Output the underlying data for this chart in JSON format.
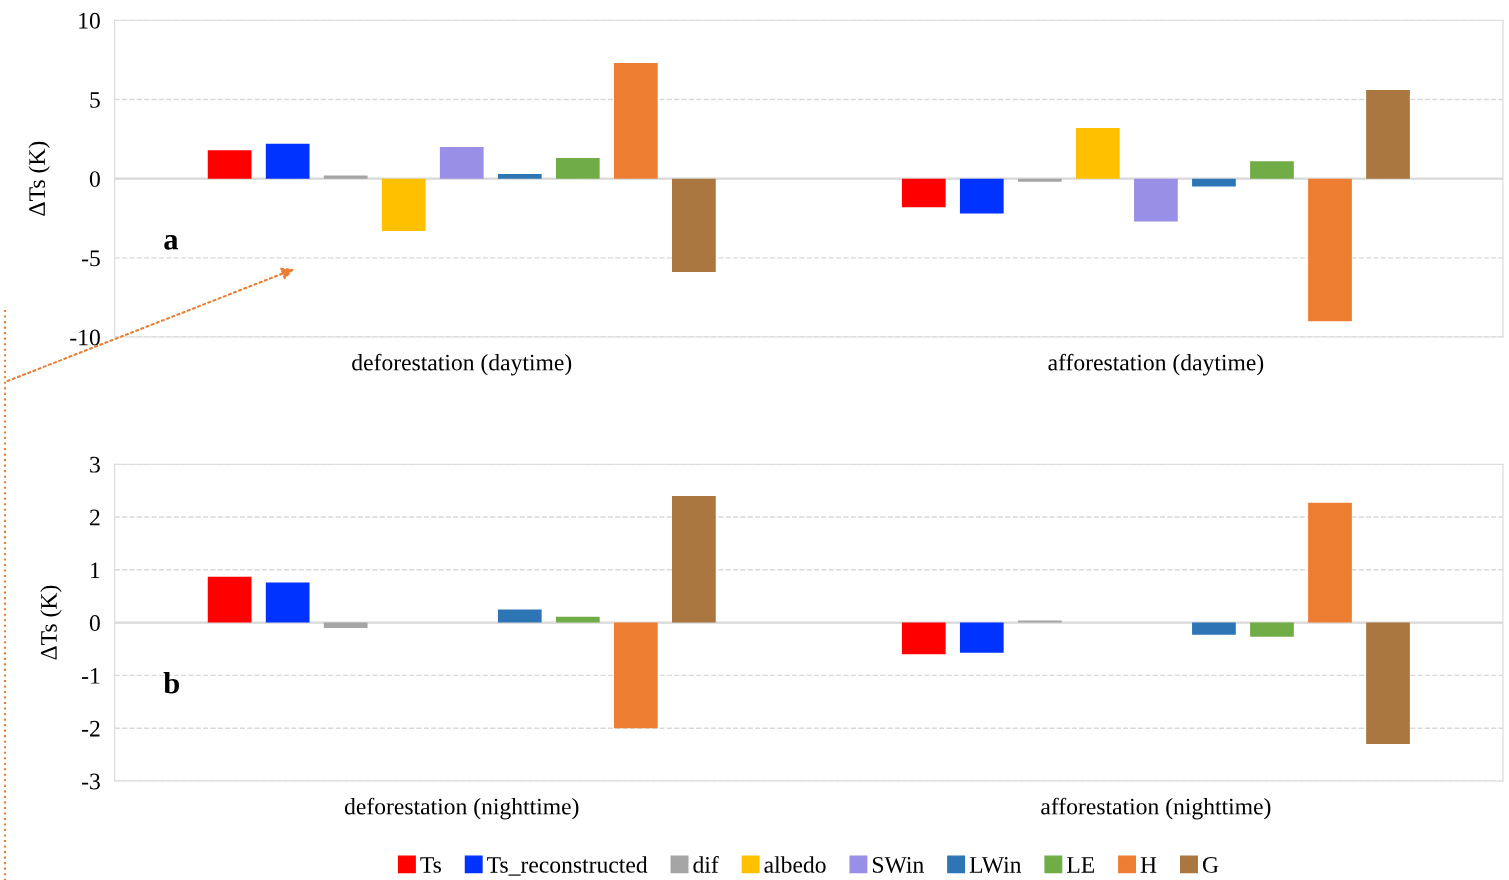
{
  "chart_data": [
    {
      "type": "bar",
      "ylabel": "ΔTs (K)",
      "categories": [
        "deforestation (daytime)",
        "afforestation (daytime)"
      ],
      "series": [
        {
          "color": "#ff0000",
          "values": [
            1.8,
            -1.8
          ]
        },
        {
          "color": "#0033ff",
          "values": [
            2.2,
            -2.2
          ]
        },
        {
          "color": "#a5a5a5",
          "values": [
            0.2,
            -0.2
          ]
        },
        {
          "color": "#ffc000",
          "values": [
            -3.3,
            3.2
          ]
        },
        {
          "color": "#9a8fe6",
          "values": [
            2.0,
            -2.7
          ]
        },
        {
          "color": "#2e75b6",
          "values": [
            0.3,
            -0.5
          ]
        },
        {
          "color": "#70ad47",
          "values": [
            1.3,
            1.1
          ]
        },
        {
          "color": "#ed7d31",
          "values": [
            7.3,
            -9.0
          ]
        },
        {
          "color": "#a9773f",
          "values": [
            -5.9,
            5.6
          ]
        }
      ],
      "ylim": [
        -10,
        10
      ],
      "yticks": [
        {
          "value": -10,
          "label": "-10"
        },
        {
          "value": -5,
          "label": "-5"
        },
        0,
        5,
        10
      ],
      "grid": "y",
      "annotations": [
        "a"
      ]
    },
    {
      "type": "bar",
      "ylabel": "ΔTs (K)",
      "categories": [
        "deforestation (nighttime)",
        "afforestation (nighttime)"
      ],
      "series": [
        {
          "name": "Ts",
          "color": "#ff0000",
          "values": [
            0.87,
            -0.6
          ]
        },
        {
          "name": "Ts_reconstructed",
          "color": "#0033ff",
          "values": [
            0.76,
            -0.57
          ]
        },
        {
          "name": "dif",
          "color": "#a5a5a5",
          "values": [
            -0.1,
            0.04
          ]
        },
        {
          "name": "albedo",
          "color": "#ffc000",
          "values": [
            0,
            0
          ]
        },
        {
          "name": "SWin",
          "color": "#9a8fe6",
          "values": [
            0,
            0
          ]
        },
        {
          "name": "LWin",
          "color": "#2e75b6",
          "values": [
            0.25,
            -0.23
          ]
        },
        {
          "name": "LE",
          "color": "#70ad47",
          "values": [
            0.11,
            -0.27
          ]
        },
        {
          "name": "H",
          "color": "#ed7d31",
          "values": [
            -2.0,
            2.27
          ]
        },
        {
          "name": "G",
          "color": "#a9773f",
          "values": [
            2.4,
            -2.3
          ]
        }
      ],
      "ylim": [
        -3,
        3
      ],
      "yticks": [
        {
          "value": -3,
          "label": "-3"
        },
        {
          "value": -2,
          "label": "-2"
        },
        {
          "value": -1,
          "label": "-1"
        },
        0,
        1,
        2,
        3
      ],
      "grid": "y",
      "annotations": [
        "b"
      ],
      "legend": "bottom"
    }
  ]
}
